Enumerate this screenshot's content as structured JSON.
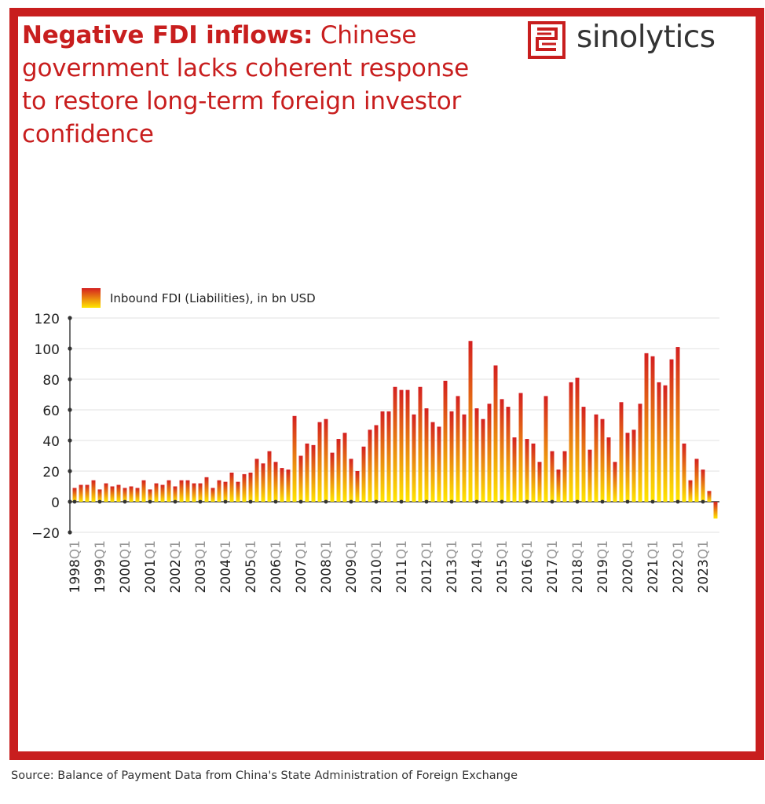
{
  "title": {
    "bold": "Negative FDI inflows:",
    "rest": " Chinese government lacks coherent response to restore long-term foreign investor confidence"
  },
  "brand": {
    "name": "sinolytics",
    "color": "#c81e1e"
  },
  "source": "Source: Balance of Payment Data from China's State Administration of Foreign Exchange",
  "colors": {
    "frame": "#c81e1e",
    "bar_top": "#d42020",
    "bar_bottom": "#ffe600",
    "grid": "#e0e0e0",
    "axis": "#333333",
    "quarter_label": "#999999"
  },
  "chart_data": {
    "type": "bar",
    "title": "Negative FDI inflows: Chinese government lacks coherent response to restore long-term foreign investor confidence",
    "legend": "Inbound FDI (Liabilities), in bn USD",
    "legend_position": "top-left",
    "grid": true,
    "ylim": [
      -20,
      120
    ],
    "yticks": [
      120,
      100,
      80,
      60,
      40,
      20,
      0,
      -20
    ],
    "xtick_years": [
      "1998",
      "1999",
      "2000",
      "2001",
      "2002",
      "2003",
      "2004",
      "2005",
      "2006",
      "2007",
      "2008",
      "2009",
      "2010",
      "2011",
      "2012",
      "2013",
      "2014",
      "2015",
      "2016",
      "2017",
      "2018",
      "2019",
      "2020",
      "2021",
      "2022",
      "2023"
    ],
    "xtick_quarter": "Q1",
    "categories": [
      "1998Q1",
      "1998Q2",
      "1998Q3",
      "1998Q4",
      "1999Q1",
      "1999Q2",
      "1999Q3",
      "1999Q4",
      "2000Q1",
      "2000Q2",
      "2000Q3",
      "2000Q4",
      "2001Q1",
      "2001Q2",
      "2001Q3",
      "2001Q4",
      "2002Q1",
      "2002Q2",
      "2002Q3",
      "2002Q4",
      "2003Q1",
      "2003Q2",
      "2003Q3",
      "2003Q4",
      "2004Q1",
      "2004Q2",
      "2004Q3",
      "2004Q4",
      "2005Q1",
      "2005Q2",
      "2005Q3",
      "2005Q4",
      "2006Q1",
      "2006Q2",
      "2006Q3",
      "2006Q4",
      "2007Q1",
      "2007Q2",
      "2007Q3",
      "2007Q4",
      "2008Q1",
      "2008Q2",
      "2008Q3",
      "2008Q4",
      "2009Q1",
      "2009Q2",
      "2009Q3",
      "2009Q4",
      "2010Q1",
      "2010Q2",
      "2010Q3",
      "2010Q4",
      "2011Q1",
      "2011Q2",
      "2011Q3",
      "2011Q4",
      "2012Q1",
      "2012Q2",
      "2012Q3",
      "2012Q4",
      "2013Q1",
      "2013Q2",
      "2013Q3",
      "2013Q4",
      "2014Q1",
      "2014Q2",
      "2014Q3",
      "2014Q4",
      "2015Q1",
      "2015Q2",
      "2015Q3",
      "2015Q4",
      "2016Q1",
      "2016Q2",
      "2016Q3",
      "2016Q4",
      "2017Q1",
      "2017Q2",
      "2017Q3",
      "2017Q4",
      "2018Q1",
      "2018Q2",
      "2018Q3",
      "2018Q4",
      "2019Q1",
      "2019Q2",
      "2019Q3",
      "2019Q4",
      "2020Q1",
      "2020Q2",
      "2020Q3",
      "2020Q4",
      "2021Q1",
      "2021Q2",
      "2021Q3",
      "2021Q4",
      "2022Q1",
      "2022Q2",
      "2022Q3",
      "2022Q4",
      "2023Q1",
      "2023Q2",
      "2023Q3"
    ],
    "values": [
      9,
      11,
      11,
      14,
      8,
      12,
      10,
      11,
      9,
      10,
      9,
      14,
      8,
      12,
      11,
      14,
      10,
      14,
      14,
      12,
      12,
      16,
      9,
      14,
      13,
      19,
      13,
      18,
      19,
      28,
      25,
      33,
      26,
      22,
      21,
      56,
      30,
      38,
      37,
      52,
      54,
      32,
      41,
      45,
      28,
      20,
      36,
      47,
      50,
      59,
      59,
      75,
      73,
      73,
      57,
      75,
      61,
      52,
      49,
      79,
      59,
      69,
      57,
      105,
      61,
      54,
      64,
      89,
      67,
      62,
      42,
      71,
      41,
      38,
      26,
      69,
      33,
      21,
      33,
      78,
      81,
      62,
      34,
      57,
      54,
      42,
      26,
      65,
      45,
      47,
      64,
      97,
      95,
      78,
      76,
      93,
      101,
      38,
      14,
      28,
      21,
      7,
      -11
    ]
  }
}
